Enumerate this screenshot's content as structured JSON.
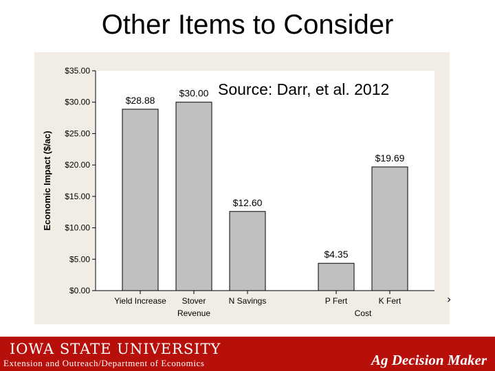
{
  "slide": {
    "title": "Other Items to Consider",
    "source": "Source:  Darr, et al. 2012"
  },
  "footer": {
    "university": "IOWA STATE UNIVERSITY",
    "subtitle": "Extension and Outreach/Department of Economics",
    "brand": "Ag Decision Maker"
  },
  "colors": {
    "bar_fill": "#c0c0c0",
    "panel_bg": "#f1ede5",
    "footer_bg": "#b70f0a"
  },
  "chart_data": {
    "type": "bar",
    "ylabel": "Economic Impact ($/ac)",
    "ylim": [
      0,
      35
    ],
    "ytick_labels": [
      "$0.00",
      "$5.00",
      "$10.00",
      "$15.00",
      "$20.00",
      "$25.00",
      "$30.00",
      "$35.00"
    ],
    "ytick_values": [
      0,
      5,
      10,
      15,
      20,
      25,
      30,
      35
    ],
    "categories": [
      "Yield Increase",
      "Stover",
      "N Savings",
      "P Fert",
      "K Fert"
    ],
    "values": [
      28.88,
      30.0,
      12.6,
      4.35,
      19.69
    ],
    "data_labels": [
      "$28.88",
      "$30.00",
      "$12.60",
      "$4.35",
      "$19.69"
    ],
    "groups": [
      {
        "label": "Revenue",
        "categories": [
          "Yield Increase",
          "Stover",
          "N Savings"
        ]
      },
      {
        "label": "Cost",
        "categories": [
          "P Fert",
          "K Fert"
        ]
      }
    ],
    "grid": false,
    "legend": "none"
  }
}
